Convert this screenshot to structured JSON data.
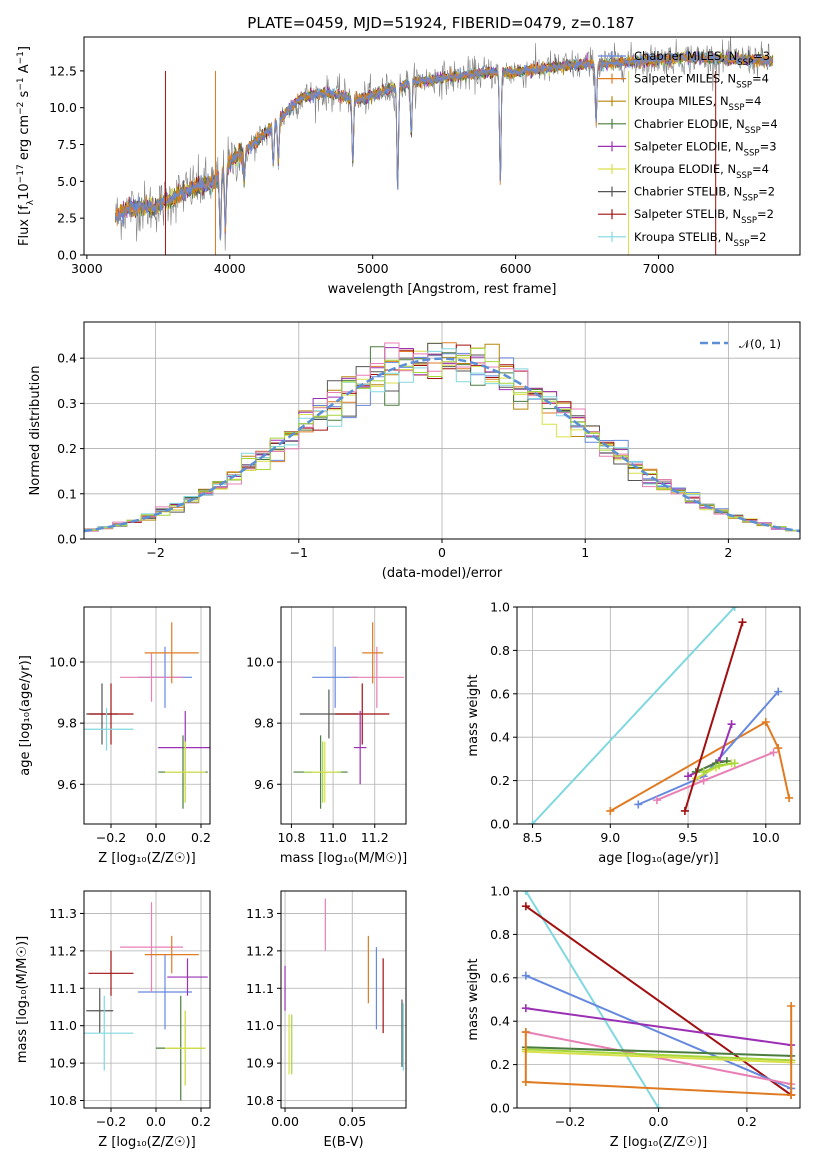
{
  "title": "PLATE=0459, MJD=51924, FIBERID=0479, z=0.187",
  "colors": {
    "chabrier_miles": "#6689e0",
    "salpeter_miles": "#e07b22",
    "kroupa_miles": "#b8860b",
    "chabrier_elodie": "#4a7c3f",
    "salpeter_elodie": "#9b30b5",
    "kroupa_elodie": "#d9e04a",
    "chabrier_stelib": "#555555",
    "salpeter_stelib": "#a01010",
    "kroupa_stelib": "#80d8df",
    "pink": "#e87fb5",
    "yellowgreen": "#a5d63a",
    "normal": "#5b8fd6"
  },
  "legend_models": [
    {
      "name": "Chabrier MILES",
      "nssp": "3",
      "color": "#6689e0"
    },
    {
      "name": "Salpeter MILES",
      "nssp": "4",
      "color": "#e07b22"
    },
    {
      "name": "Kroupa MILES",
      "nssp": "4",
      "color": "#b8860b"
    },
    {
      "name": "Chabrier ELODIE",
      "nssp": "4",
      "color": "#4a7c3f"
    },
    {
      "name": "Salpeter ELODIE",
      "nssp": "3",
      "color": "#9b30b5"
    },
    {
      "name": "Kroupa ELODIE",
      "nssp": "4",
      "color": "#d9e04a"
    },
    {
      "name": "Chabrier STELIB",
      "nssp": "2",
      "color": "#555555"
    },
    {
      "name": "Salpeter STELIB",
      "nssp": "2",
      "color": "#a01010"
    },
    {
      "name": "Kroupa STELIB",
      "nssp": "2",
      "color": "#80d8df"
    }
  ],
  "legend_nssp_prefix": "N",
  "legend_nssp_sub": "SSP",
  "chart_data": [
    {
      "id": "spectrum",
      "type": "line",
      "title": "PLATE=0459, MJD=51924, FIBERID=0479, z=0.187",
      "xlabel": "wavelength [Angstrom, rest frame]",
      "ylabel_parts": [
        "Flux [f",
        "λ",
        "10",
        "−17",
        " erg cm",
        "−2",
        " s",
        "−1",
        " A",
        "−1",
        "]"
      ],
      "xlim": [
        2980,
        7990
      ],
      "ylim": [
        0,
        14.8
      ],
      "xticks": [
        3000,
        4000,
        5000,
        6000,
        7000
      ],
      "yticks": [
        0.0,
        2.5,
        5.0,
        7.5,
        10.0,
        12.5
      ],
      "ytick_labels": [
        "0.0",
        "2.5",
        "5.0",
        "7.5",
        "10.0",
        "12.5"
      ],
      "data_envelope": {
        "x": [
          3200,
          3300,
          3500,
          3700,
          3900,
          4000,
          4200,
          4400,
          4500,
          4700,
          4900,
          5100,
          5300,
          5500,
          5800,
          6000,
          6300,
          6600,
          6900,
          7200,
          7500,
          7800
        ],
        "y": [
          2.6,
          3.2,
          3.3,
          4.4,
          5.0,
          6.3,
          7.8,
          9.7,
          10.7,
          11.0,
          10.5,
          11.2,
          11.8,
          12.0,
          12.4,
          12.4,
          12.8,
          13.0,
          13.2,
          13.4,
          13.3,
          13.2
        ]
      }
    },
    {
      "id": "residuals",
      "type": "histogram",
      "xlabel": "(data-model)/error",
      "ylabel": "Normed distribution",
      "xlim": [
        -2.5,
        2.5
      ],
      "ylim": [
        0,
        0.48
      ],
      "xticks": [
        -2,
        -1,
        0,
        1,
        2
      ],
      "xtick_labels": [
        "−2",
        "−1",
        "0",
        "1",
        "2"
      ],
      "yticks": [
        0.0,
        0.1,
        0.2,
        0.3,
        0.4
      ],
      "ytick_labels": [
        "0.0",
        "0.1",
        "0.2",
        "0.3",
        "0.4"
      ],
      "bin_width": 0.1,
      "legend_label": "𝒩(0, 1)",
      "normal": {
        "mean": 0,
        "sigma": 1
      }
    },
    {
      "id": "age-vs-Z",
      "type": "errorbar",
      "xlabel": "Z [log₁₀(Z/Z☉)]",
      "ylabel": "age  [log₁₀(age/yr)]",
      "xlim": [
        -0.32,
        0.24
      ],
      "ylim": [
        9.47,
        10.18
      ],
      "xticks": [
        -0.2,
        0.0,
        0.2
      ],
      "xtick_labels": [
        "−0.2",
        "0.0",
        "0.2"
      ],
      "yticks": [
        9.6,
        9.8,
        10.0
      ],
      "ytick_labels": [
        "9.6",
        "9.8",
        "10.0"
      ],
      "points": [
        {
          "x": -0.24,
          "xerr": 0.07,
          "y": 9.83,
          "yerr": 0.1,
          "color": "#555555"
        },
        {
          "x": -0.2,
          "xerr": 0.1,
          "y": 9.83,
          "yerr": 0.1,
          "color": "#a01010"
        },
        {
          "x": -0.22,
          "xerr": 0.12,
          "y": 9.78,
          "yerr": 0.07,
          "color": "#80d8df"
        },
        {
          "x": 0.04,
          "xerr": 0.12,
          "y": 9.95,
          "yerr": 0.1,
          "color": "#6689e0"
        },
        {
          "x": -0.02,
          "xerr": 0.14,
          "y": 9.95,
          "yerr": 0.08,
          "color": "#e87fb5"
        },
        {
          "x": 0.07,
          "xerr": 0.12,
          "y": 10.03,
          "yerr": 0.1,
          "color": "#e07b22"
        },
        {
          "x": 0.13,
          "xerr": 0.12,
          "y": 9.72,
          "yerr": 0.12,
          "color": "#9b30b5"
        },
        {
          "x": 0.12,
          "xerr": 0.11,
          "y": 9.64,
          "yerr": 0.12,
          "color": "#4a7c3f"
        },
        {
          "x": 0.13,
          "xerr": 0.09,
          "y": 9.64,
          "yerr": 0.1,
          "color": "#a5d63a"
        },
        {
          "x": 0.13,
          "xerr": 0.09,
          "y": 9.64,
          "yerr": 0.1,
          "color": "#d9e04a"
        }
      ]
    },
    {
      "id": "age-vs-mass",
      "type": "errorbar",
      "xlabel": "mass [log₁₀(M/M☉)]",
      "xlim": [
        10.75,
        11.35
      ],
      "ylim": [
        9.47,
        10.18
      ],
      "xticks": [
        10.8,
        11.0,
        11.2
      ],
      "xtick_labels": [
        "10.8",
        "11.0",
        "11.2"
      ],
      "yticks": [
        9.6,
        9.8,
        10.0
      ],
      "ytick_labels": [
        "9.6",
        "9.8",
        "10.0"
      ],
      "points": [
        {
          "x": 10.98,
          "xerr": 0.14,
          "y": 9.83,
          "yerr": 0.08,
          "color": "#555555"
        },
        {
          "x": 11.14,
          "xerr": 0.13,
          "y": 9.83,
          "yerr": 0.1,
          "color": "#a01010"
        },
        {
          "x": 11.01,
          "xerr": 0.11,
          "y": 9.95,
          "yerr": 0.1,
          "color": "#6689e0"
        },
        {
          "x": 11.21,
          "xerr": 0.13,
          "y": 9.95,
          "yerr": 0.1,
          "color": "#e87fb5"
        },
        {
          "x": 11.19,
          "xerr": 0.05,
          "y": 10.03,
          "yerr": 0.1,
          "color": "#e07b22"
        },
        {
          "x": 11.13,
          "xerr": 0.03,
          "y": 9.72,
          "yerr": 0.12,
          "color": "#9b30b5"
        },
        {
          "x": 10.94,
          "xerr": 0.13,
          "y": 9.64,
          "yerr": 0.12,
          "color": "#4a7c3f"
        },
        {
          "x": 10.95,
          "xerr": 0.09,
          "y": 9.64,
          "yerr": 0.1,
          "color": "#a5d63a"
        },
        {
          "x": 10.96,
          "xerr": 0.06,
          "y": 9.64,
          "yerr": 0.1,
          "color": "#d9e04a"
        }
      ]
    },
    {
      "id": "mass-weight-vs-age",
      "type": "line",
      "xlabel": "age  [log₁₀(age/yr)]",
      "ylabel": "mass weight",
      "xlim": [
        8.4,
        10.22
      ],
      "ylim": [
        0,
        1.0
      ],
      "xticks": [
        8.5,
        9.0,
        9.5,
        10.0
      ],
      "xtick_labels": [
        "8.5",
        "9.0",
        "9.5",
        "10.0"
      ],
      "yticks": [
        0.0,
        0.2,
        0.4,
        0.6,
        0.8,
        1.0
      ],
      "ytick_labels": [
        "0.0",
        "0.2",
        "0.4",
        "0.6",
        "0.8",
        "1.0"
      ],
      "series": [
        {
          "color": "#80d8df",
          "x": [
            8.5,
            9.8
          ],
          "y": [
            0.0,
            1.0
          ]
        },
        {
          "color": "#e07b22",
          "x": [
            9.0,
            10.0,
            10.08,
            10.15
          ],
          "y": [
            0.06,
            0.47,
            0.35,
            0.12
          ]
        },
        {
          "color": "#6689e0",
          "x": [
            9.18,
            9.6,
            10.08
          ],
          "y": [
            0.09,
            0.22,
            0.61
          ]
        },
        {
          "color": "#e87fb5",
          "x": [
            9.3,
            9.6,
            10.05
          ],
          "y": [
            0.11,
            0.2,
            0.33
          ]
        },
        {
          "color": "#9b30b5",
          "x": [
            9.5,
            9.7,
            9.78
          ],
          "y": [
            0.22,
            0.29,
            0.46
          ]
        },
        {
          "color": "#4a7c3f",
          "x": [
            9.55,
            9.68,
            9.75
          ],
          "y": [
            0.24,
            0.28,
            0.29
          ]
        },
        {
          "color": "#d9e04a",
          "x": [
            9.55,
            9.68,
            9.78
          ],
          "y": [
            0.21,
            0.26,
            0.28
          ]
        },
        {
          "color": "#a5d63a",
          "x": [
            9.6,
            9.7,
            9.8
          ],
          "y": [
            0.24,
            0.27,
            0.28
          ]
        },
        {
          "color": "#a01010",
          "x": [
            9.48,
            9.85
          ],
          "y": [
            0.06,
            0.93
          ]
        }
      ]
    },
    {
      "id": "mass-vs-Z",
      "type": "errorbar",
      "xlabel": "Z [log₁₀(Z/Z☉)]",
      "ylabel": "mass [log₁₀(M/M☉)]",
      "xlim": [
        -0.32,
        0.24
      ],
      "ylim": [
        10.78,
        11.36
      ],
      "xticks": [
        -0.2,
        0.0,
        0.2
      ],
      "xtick_labels": [
        "−0.2",
        "0.0",
        "0.2"
      ],
      "yticks": [
        10.8,
        10.9,
        11.0,
        11.1,
        11.2,
        11.3
      ],
      "ytick_labels": [
        "10.8",
        "10.9",
        "11.0",
        "11.1",
        "11.2",
        "11.3"
      ],
      "points": [
        {
          "x": -0.25,
          "xerr": 0.06,
          "y": 11.04,
          "yerr": 0.06,
          "color": "#555555"
        },
        {
          "x": -0.2,
          "xerr": 0.1,
          "y": 11.14,
          "yerr": 0.06,
          "color": "#a01010"
        },
        {
          "x": -0.23,
          "xerr": 0.13,
          "y": 10.98,
          "yerr": 0.1,
          "color": "#80d8df"
        },
        {
          "x": 0.04,
          "xerr": 0.12,
          "y": 11.09,
          "yerr": 0.1,
          "color": "#6689e0"
        },
        {
          "x": -0.02,
          "xerr": 0.14,
          "y": 11.21,
          "yerr": 0.12,
          "color": "#e87fb5"
        },
        {
          "x": 0.07,
          "xerr": 0.12,
          "y": 11.19,
          "yerr": 0.05,
          "color": "#e07b22"
        },
        {
          "x": 0.14,
          "xerr": 0.09,
          "y": 11.13,
          "yerr": 0.05,
          "color": "#9b30b5"
        },
        {
          "x": 0.11,
          "xerr": 0.11,
          "y": 10.94,
          "yerr": 0.14,
          "color": "#4a7c3f"
        },
        {
          "x": 0.13,
          "xerr": 0.09,
          "y": 10.94,
          "yerr": 0.1,
          "color": "#a5d63a"
        },
        {
          "x": 0.13,
          "xerr": 0.09,
          "y": 10.94,
          "yerr": 0.1,
          "color": "#d9e04a"
        }
      ]
    },
    {
      "id": "mass-vs-ebv",
      "type": "errorbar",
      "xlabel": "E(B-V)",
      "xlim": [
        -0.003,
        0.09
      ],
      "ylim": [
        10.78,
        11.36
      ],
      "xticks": [
        0.0,
        0.05
      ],
      "xtick_labels": [
        "0.00",
        "0.05"
      ],
      "yticks": [
        10.8,
        10.9,
        11.0,
        11.1,
        11.2,
        11.3
      ],
      "ytick_labels": [
        "10.8",
        "10.9",
        "11.0",
        "11.1",
        "11.2",
        "11.3"
      ],
      "points": [
        {
          "x": 0.0,
          "xerr": 0,
          "y": 11.1,
          "yerr": 0.06,
          "color": "#9b30b5"
        },
        {
          "x": 0.003,
          "xerr": 0,
          "y": 10.95,
          "yerr": 0.08,
          "color": "#d9e04a"
        },
        {
          "x": 0.005,
          "xerr": 0,
          "y": 10.95,
          "yerr": 0.08,
          "color": "#a5d63a"
        },
        {
          "x": 0.03,
          "xerr": 0,
          "y": 11.27,
          "yerr": 0.07,
          "color": "#e87fb5"
        },
        {
          "x": 0.062,
          "xerr": 0,
          "y": 11.15,
          "yerr": 0.09,
          "color": "#e07b22"
        },
        {
          "x": 0.068,
          "xerr": 0,
          "y": 11.1,
          "yerr": 0.11,
          "color": "#6689e0"
        },
        {
          "x": 0.073,
          "xerr": 0,
          "y": 11.08,
          "yerr": 0.1,
          "color": "#a01010"
        },
        {
          "x": 0.087,
          "xerr": 0,
          "y": 10.98,
          "yerr": 0.09,
          "color": "#555555"
        },
        {
          "x": 0.088,
          "xerr": 0,
          "y": 10.97,
          "yerr": 0.09,
          "color": "#80d8df"
        }
      ]
    },
    {
      "id": "mass-weight-vs-Z",
      "type": "line",
      "xlabel": "Z [log₁₀(Z/Z☉)]",
      "ylabel": "mass weight",
      "xlim": [
        -0.32,
        0.32
      ],
      "ylim": [
        0,
        1.0
      ],
      "xticks": [
        -0.2,
        0.0,
        0.2
      ],
      "xtick_labels": [
        "−0.2",
        "0.0",
        "0.2"
      ],
      "yticks": [
        0.0,
        0.2,
        0.4,
        0.6,
        0.8,
        1.0
      ],
      "ytick_labels": [
        "0.0",
        "0.2",
        "0.4",
        "0.6",
        "0.8",
        "1.0"
      ],
      "series": [
        {
          "color": "#80d8df",
          "x": [
            -0.3,
            0.0
          ],
          "y": [
            1.0,
            0.0
          ]
        },
        {
          "color": "#a01010",
          "x": [
            -0.3,
            0.3
          ],
          "y": [
            0.93,
            0.06
          ]
        },
        {
          "color": "#6689e0",
          "x": [
            -0.3,
            0.3
          ],
          "y": [
            0.61,
            0.09
          ]
        },
        {
          "color": "#9b30b5",
          "x": [
            -0.3,
            0.3,
            0.3
          ],
          "y": [
            0.46,
            0.29,
            0.22
          ]
        },
        {
          "color": "#e87fb5",
          "x": [
            -0.3,
            0.3
          ],
          "y": [
            0.35,
            0.11
          ]
        },
        {
          "color": "#4a7c3f",
          "x": [
            -0.3,
            0.3
          ],
          "y": [
            0.28,
            0.24
          ]
        },
        {
          "color": "#d9e04a",
          "x": [
            -0.3,
            0.3
          ],
          "y": [
            0.26,
            0.21
          ]
        },
        {
          "color": "#a5d63a",
          "x": [
            -0.3,
            0.3
          ],
          "y": [
            0.27,
            0.22
          ]
        },
        {
          "color": "#e07b22",
          "x": [
            -0.3,
            -0.3,
            0.3,
            0.3,
            0.3
          ],
          "y": [
            0.35,
            0.12,
            0.06,
            0.47,
            0.06
          ]
        }
      ]
    }
  ]
}
